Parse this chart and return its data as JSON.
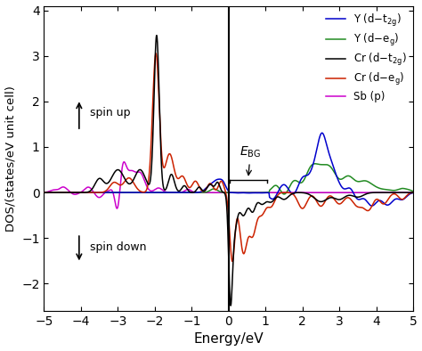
{
  "title": "",
  "xlabel": "Energy/eV",
  "ylabel": "DOS/(states/eV unit cell)",
  "xlim": [
    -5,
    5
  ],
  "ylim": [
    -2.6,
    4.1
  ],
  "yticks": [
    -2,
    -1,
    0,
    1,
    2,
    3,
    4
  ],
  "xticks": [
    -5,
    -4,
    -3,
    -2,
    -1,
    0,
    1,
    2,
    3,
    4,
    5
  ],
  "fermi_x": 0,
  "colors": {
    "Y_t2g": "#0000cc",
    "Y_eg": "#228B22",
    "Cr_t2g": "#000000",
    "Cr_eg": "#cc2200",
    "Sb_p": "#cc00cc"
  },
  "lw": 1.1
}
